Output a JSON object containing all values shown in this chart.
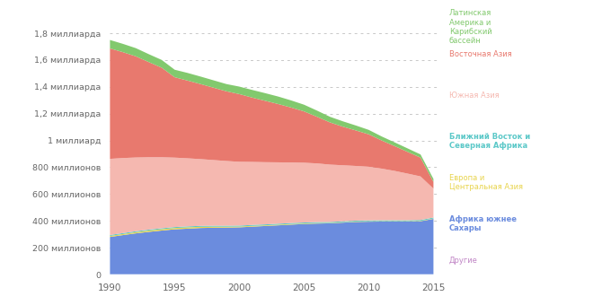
{
  "years": [
    1990,
    1991,
    1992,
    1993,
    1994,
    1995,
    1996,
    1997,
    1998,
    1999,
    2000,
    2001,
    2002,
    2003,
    2004,
    2005,
    2006,
    2007,
    2008,
    2009,
    2010,
    2011,
    2012,
    2013,
    2014,
    2015
  ],
  "regions": [
    {
      "name": "Другие",
      "color": "#c085c5",
      "data": [
        2,
        2,
        2,
        2,
        2,
        2,
        2,
        2,
        2,
        2,
        2,
        2,
        2,
        2,
        2,
        2,
        2,
        2,
        2,
        2,
        2,
        2,
        2,
        2,
        2,
        2
      ]
    },
    {
      "name": "Африка южнее Сахары",
      "color": "#6b8cde",
      "data": [
        278,
        292,
        305,
        316,
        326,
        335,
        340,
        345,
        347,
        348,
        350,
        355,
        360,
        365,
        370,
        375,
        378,
        380,
        385,
        390,
        392,
        393,
        393,
        393,
        395,
        413
      ]
    },
    {
      "name": "Европа и Центральная Азия",
      "color": "#e8d44d",
      "data": [
        8,
        8,
        9,
        10,
        10,
        10,
        10,
        9,
        8,
        7,
        6,
        6,
        5,
        5,
        5,
        4,
        4,
        3,
        3,
        3,
        3,
        3,
        3,
        3,
        3,
        3
      ]
    },
    {
      "name": "Ближний Восток и Северная Африка",
      "color": "#5bc8c8",
      "data": [
        7,
        7,
        7,
        7,
        7,
        7,
        7,
        7,
        7,
        7,
        7,
        7,
        7,
        7,
        7,
        7,
        7,
        7,
        7,
        7,
        7,
        7,
        7,
        7,
        7,
        7
      ]
    },
    {
      "name": "Южная Азия",
      "color": "#f5b8b0",
      "data": [
        568,
        560,
        550,
        540,
        530,
        518,
        508,
        498,
        490,
        483,
        476,
        470,
        464,
        458,
        452,
        446,
        438,
        428,
        418,
        408,
        400,
        385,
        368,
        348,
        325,
        216
      ]
    },
    {
      "name": "Восточная Азия",
      "color": "#e8796e",
      "data": [
        824,
        790,
        755,
        710,
        668,
        600,
        580,
        560,
        540,
        520,
        505,
        480,
        458,
        435,
        410,
        383,
        348,
        315,
        288,
        265,
        242,
        210,
        185,
        162,
        140,
        50
      ]
    },
    {
      "name": "Латинская Америка и Карибский бассейн",
      "color": "#82c96e",
      "data": [
        63,
        62,
        61,
        59,
        58,
        56,
        57,
        56,
        55,
        54,
        56,
        57,
        57,
        56,
        53,
        50,
        46,
        42,
        40,
        37,
        33,
        30,
        28,
        26,
        24,
        22
      ]
    }
  ],
  "ytick_labels": [
    "0",
    "200 миллионов",
    "400 миллионов",
    "600 миллионов",
    "800 миллионов",
    "1 миллиард",
    "1,2 миллиарда",
    "1,4 миллиарда",
    "1,6 миллиарда",
    "1,8 миллиарда"
  ],
  "ytick_values": [
    0,
    200,
    400,
    600,
    800,
    1000,
    1200,
    1400,
    1600,
    1800
  ],
  "xticks": [
    1990,
    1995,
    2000,
    2005,
    2010,
    2015
  ],
  "ylim": [
    0,
    1980
  ],
  "background_color": "#ffffff",
  "grid_color": "#c8c8c8",
  "legend_entries": [
    {
      "label": "Латинская\nАмерика и\nКарибский\nбассейн",
      "color": "#82c96e",
      "bold": false
    },
    {
      "label": "Восточная Азия",
      "color": "#e8796e",
      "bold": false
    },
    {
      "label": "Южная Азия",
      "color": "#f5b8b0",
      "bold": false
    },
    {
      "label": "Ближний Восток и\nСеверная Африка",
      "color": "#5bc8c8",
      "bold": true
    },
    {
      "label": "Европа и\nЦентральная Азия",
      "color": "#e8d44d",
      "bold": false
    },
    {
      "label": "Африка южнее\nСахары",
      "color": "#6b8cde",
      "bold": true
    },
    {
      "label": "Другие",
      "color": "#c085c5",
      "bold": false
    }
  ]
}
